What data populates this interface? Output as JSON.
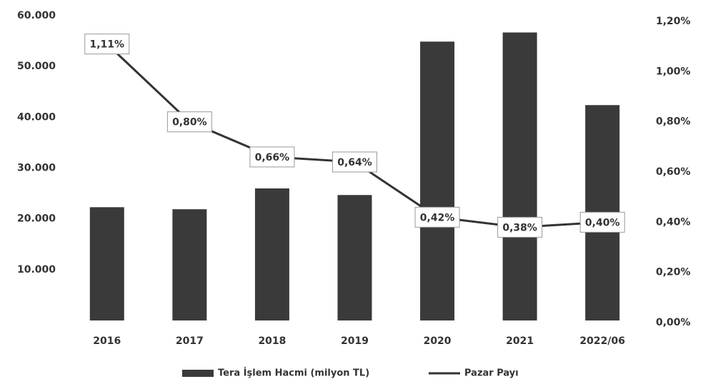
{
  "chart_data": {
    "type": "bar_line",
    "categories": [
      "2016",
      "2017",
      "2018",
      "2019",
      "2020",
      "2021",
      "2022/06"
    ],
    "series": [
      {
        "name": "Tera İşlem Hacmi (milyon TL)",
        "color": "#3a3a3a",
        "type": "bar",
        "values": [
          22300,
          21900,
          26000,
          24700,
          54900,
          56700,
          42400
        ]
      },
      {
        "name": "Pazar Payı",
        "color": "#333333",
        "type": "line",
        "axis": "y2",
        "values": [
          1.11,
          0.8,
          0.66,
          0.64,
          0.42,
          0.38,
          0.4
        ],
        "value_labels": [
          "1,11%",
          "0,80%",
          "0,66%",
          "0,64%",
          "0,42%",
          "0,38%",
          "0,40%"
        ]
      }
    ],
    "ylim": [
      0,
      60000
    ],
    "yticks": [
      {
        "value": 10000,
        "label": "10.000"
      },
      {
        "value": 20000,
        "label": "20.000"
      },
      {
        "value": 30000,
        "label": "30.000"
      },
      {
        "value": 40000,
        "label": "40.000"
      },
      {
        "value": 50000,
        "label": "50.000"
      },
      {
        "value": 60000,
        "label": "60.000"
      }
    ],
    "y2lim": [
      0,
      1.2
    ],
    "y2ticks": [
      {
        "value": 0,
        "label": "0,00%"
      },
      {
        "value": 0.2,
        "label": "0,20%"
      },
      {
        "value": 0.4,
        "label": "0,40%"
      },
      {
        "value": 0.6,
        "label": "0,60%"
      },
      {
        "value": 0.8,
        "label": "0,80%"
      },
      {
        "value": 1.0,
        "label": "1,00%"
      },
      {
        "value": 1.2,
        "label": "1,20%"
      }
    ],
    "grid": false,
    "legend": "bottom"
  }
}
